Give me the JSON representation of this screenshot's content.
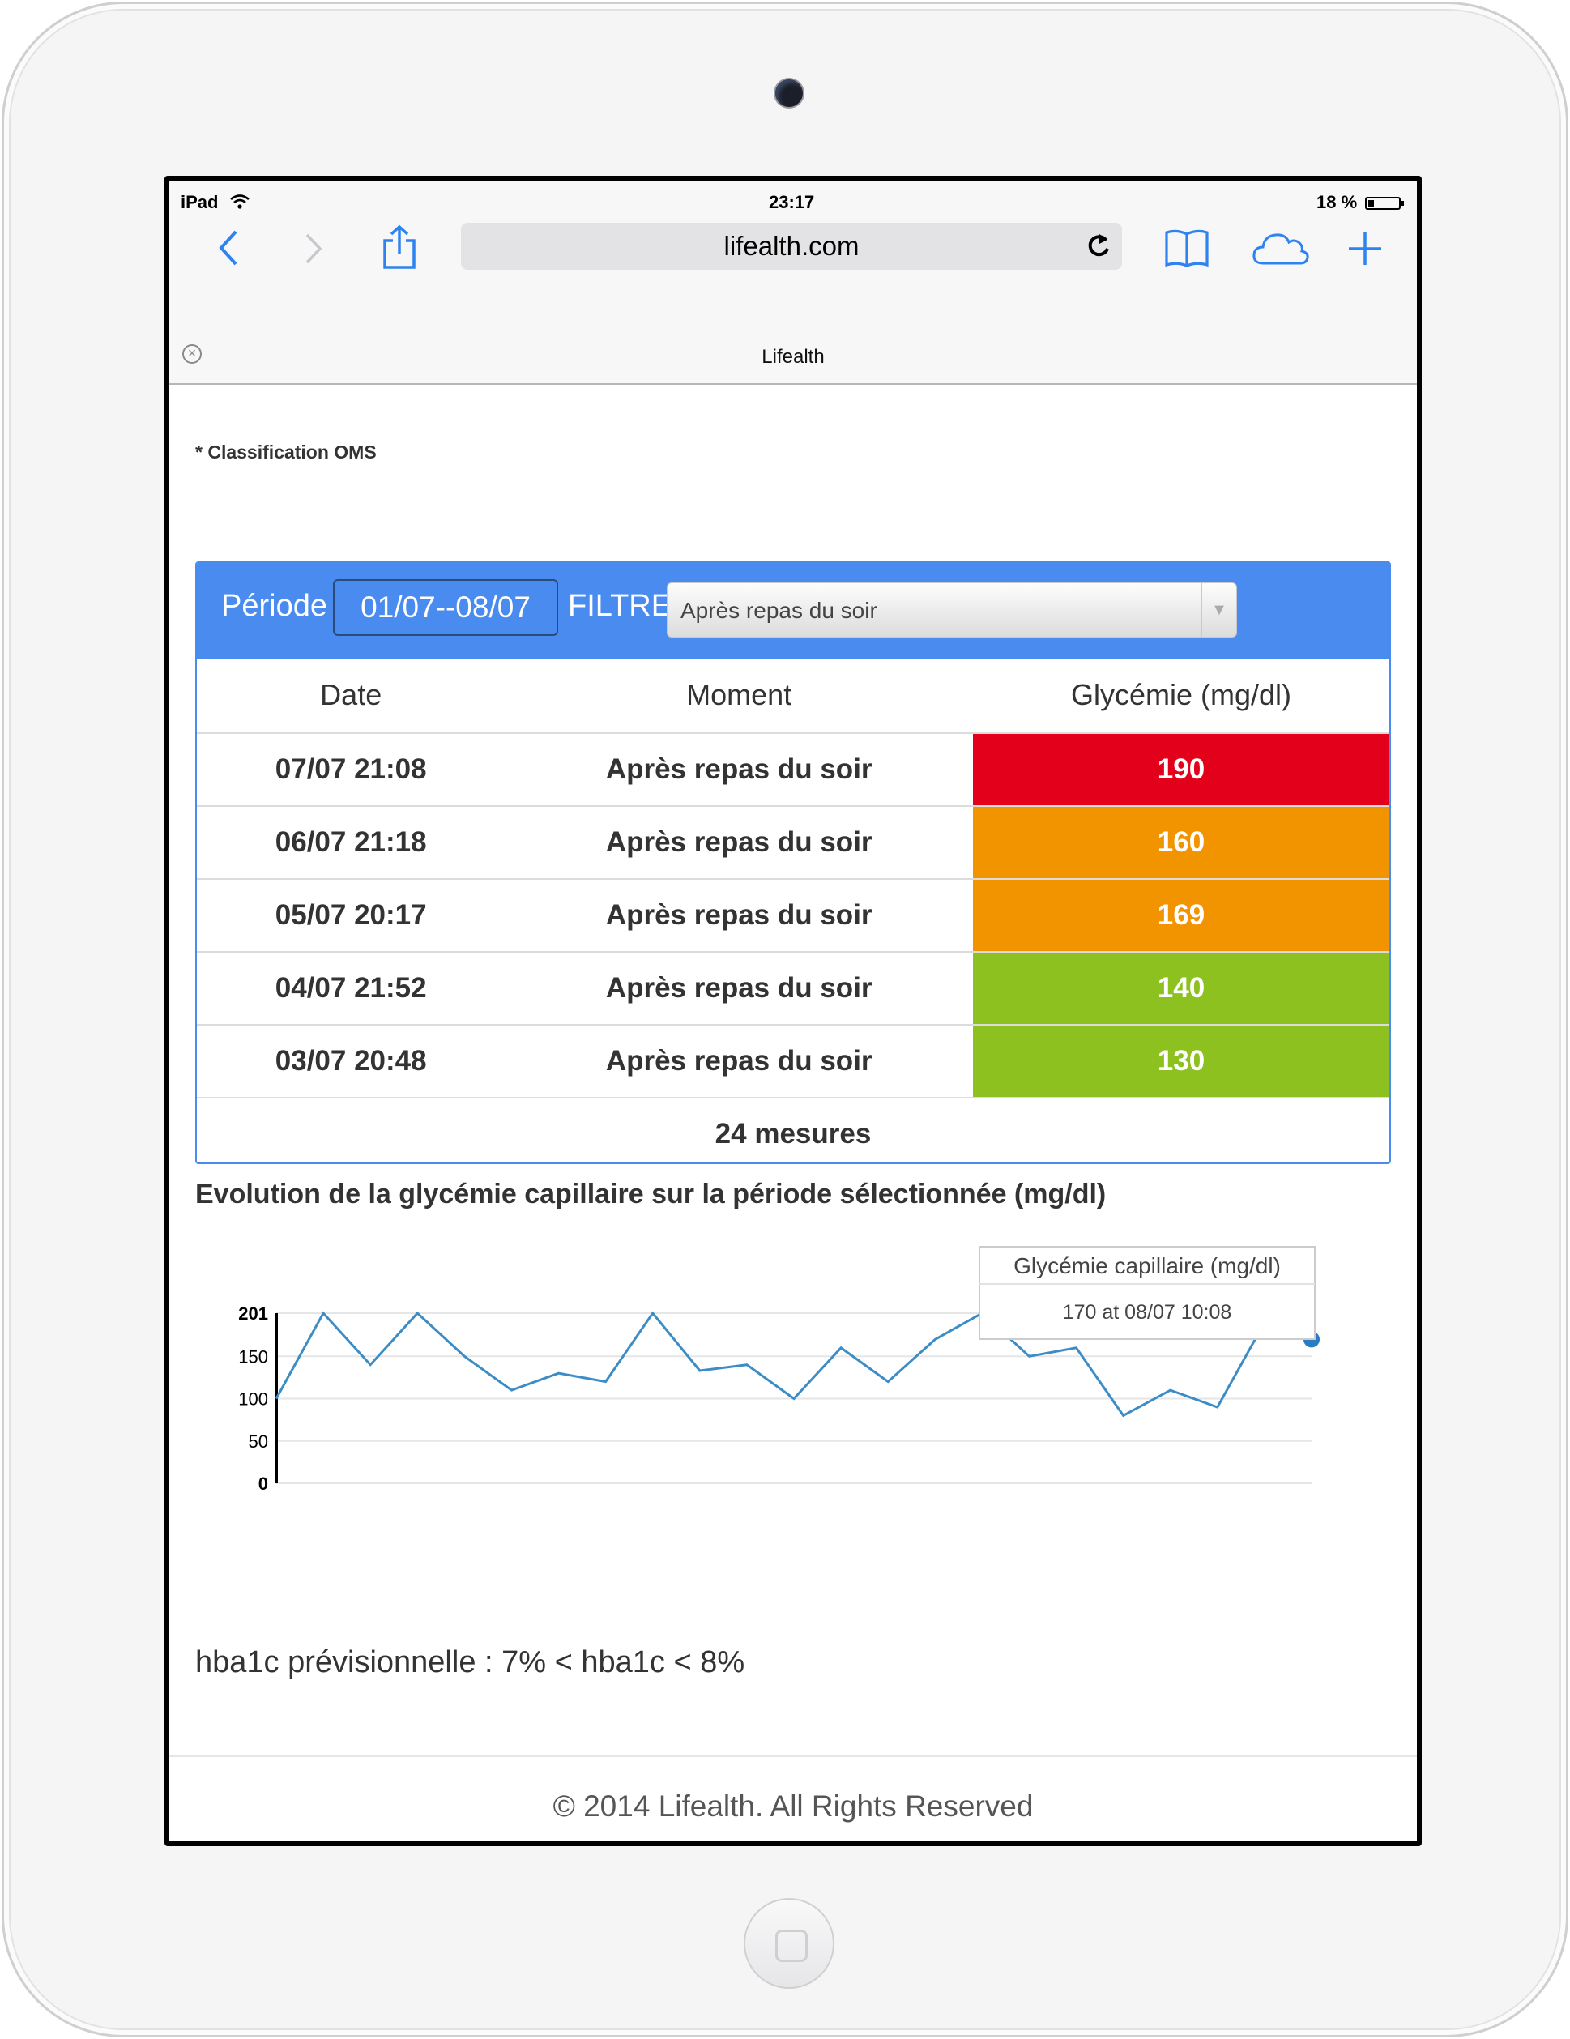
{
  "status_bar": {
    "device": "iPad",
    "time": "23:17",
    "battery": "18 %",
    "battery_level": 0.18
  },
  "browser": {
    "url": "lifealth.com",
    "tab_title": "Lifealth",
    "icons": [
      "back-icon",
      "forward-icon",
      "share-icon",
      "reload-icon",
      "bookmarks-icon",
      "cloud-tabs-icon",
      "new-tab-icon",
      "close-tab-icon"
    ]
  },
  "page": {
    "classification_note": "* Classification OMS",
    "filter_bar": {
      "periode_label": "Période",
      "periode_value": "01/07--08/07",
      "filtre_label": "FILTRE",
      "filtre_value": "Après repas du soir"
    },
    "table": {
      "headers": [
        "Date",
        "Moment",
        "Glycémie (mg/dl)"
      ],
      "rows": [
        {
          "date": "07/07 21:08",
          "moment": "Après repas du soir",
          "value": "190",
          "color": "#e3001b"
        },
        {
          "date": "06/07 21:18",
          "moment": "Après repas du soir",
          "value": "160",
          "color": "#f29400"
        },
        {
          "date": "05/07 20:17",
          "moment": "Après repas du soir",
          "value": "169",
          "color": "#f29400"
        },
        {
          "date": "04/07 21:52",
          "moment": "Après repas du soir",
          "value": "140",
          "color": "#8cc11f"
        },
        {
          "date": "03/07 20:48",
          "moment": "Après repas du soir",
          "value": "130",
          "color": "#8cc11f"
        }
      ],
      "total": "24 mesures"
    },
    "chart_title": "Evolution de la glycémie capillaire sur la période sélectionnée (mg/dl)",
    "hba1c": "hba1c prévisionnelle : 7% < hba1c < 8%",
    "footer": "© 2014 Lifealth. All Rights Reserved"
  },
  "chart_data": {
    "type": "line",
    "title": "Evolution de la glycémie capillaire sur la période sélectionnée (mg/dl)",
    "xlabel": "",
    "ylabel": "",
    "ylim": [
      0,
      201
    ],
    "yticks": [
      0,
      50,
      100,
      150,
      201
    ],
    "grid": true,
    "series": [
      {
        "name": "Glycémie capillaire (mg/dl)",
        "color": "#3c8dc5",
        "values": [
          100,
          201,
          140,
          201,
          150,
          110,
          130,
          120,
          201,
          133,
          140,
          100,
          160,
          120,
          170,
          201,
          150,
          160,
          80,
          110,
          90,
          190,
          170
        ]
      }
    ],
    "tooltip": {
      "title": "Glycémie capillaire (mg/dl)",
      "text": "170 at 08/07 10:08"
    }
  }
}
